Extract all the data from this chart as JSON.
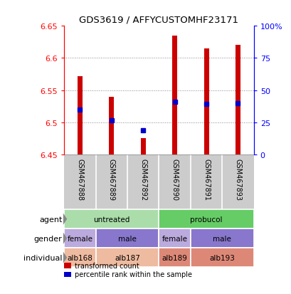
{
  "title": "GDS3619 / AFFYCUSTOMHF23171",
  "samples": [
    "GSM467888",
    "GSM467889",
    "GSM467892",
    "GSM467890",
    "GSM467891",
    "GSM467893"
  ],
  "red_values": [
    6.572,
    6.54,
    6.475,
    6.635,
    6.615,
    6.62
  ],
  "blue_values": [
    6.52,
    6.503,
    6.487,
    6.532,
    6.528,
    6.53
  ],
  "ymin": 6.45,
  "ymax": 6.65,
  "yticks": [
    6.45,
    6.5,
    6.55,
    6.6,
    6.65
  ],
  "ytick_labels": [
    "6.45",
    "6.5",
    "6.55",
    "6.6",
    "6.65"
  ],
  "percentile_ticks": [
    0,
    25,
    50,
    75,
    100
  ],
  "percentile_labels": [
    "0",
    "25",
    "50",
    "75",
    "100%"
  ],
  "bar_bottom": 6.45,
  "agent_groups": [
    {
      "label": "untreated",
      "span": [
        0.5,
        3.5
      ],
      "color": "#aaddaa"
    },
    {
      "label": "probucol",
      "span": [
        3.5,
        6.5
      ],
      "color": "#66cc66"
    }
  ],
  "gender_groups": [
    {
      "label": "female",
      "span": [
        0.5,
        1.5
      ],
      "color": "#bbaadd"
    },
    {
      "label": "male",
      "span": [
        1.5,
        3.5
      ],
      "color": "#8877cc"
    },
    {
      "label": "female",
      "span": [
        3.5,
        4.5
      ],
      "color": "#bbaadd"
    },
    {
      "label": "male",
      "span": [
        4.5,
        6.5
      ],
      "color": "#8877cc"
    }
  ],
  "individual_groups": [
    {
      "label": "alb168",
      "span": [
        0.5,
        1.5
      ],
      "color": "#eebba0"
    },
    {
      "label": "alb187",
      "span": [
        1.5,
        3.5
      ],
      "color": "#eebba0"
    },
    {
      "label": "alb189",
      "span": [
        3.5,
        4.5
      ],
      "color": "#dd8877"
    },
    {
      "label": "alb193",
      "span": [
        4.5,
        6.5
      ],
      "color": "#dd8877"
    }
  ],
  "row_labels": [
    "agent",
    "gender",
    "individual"
  ],
  "bar_color": "#cc0000",
  "dot_color": "#0000cc",
  "bg_color": "#cccccc",
  "legend_items": [
    {
      "color": "#cc0000",
      "label": "transformed count"
    },
    {
      "color": "#0000cc",
      "label": "percentile rank within the sample"
    }
  ]
}
